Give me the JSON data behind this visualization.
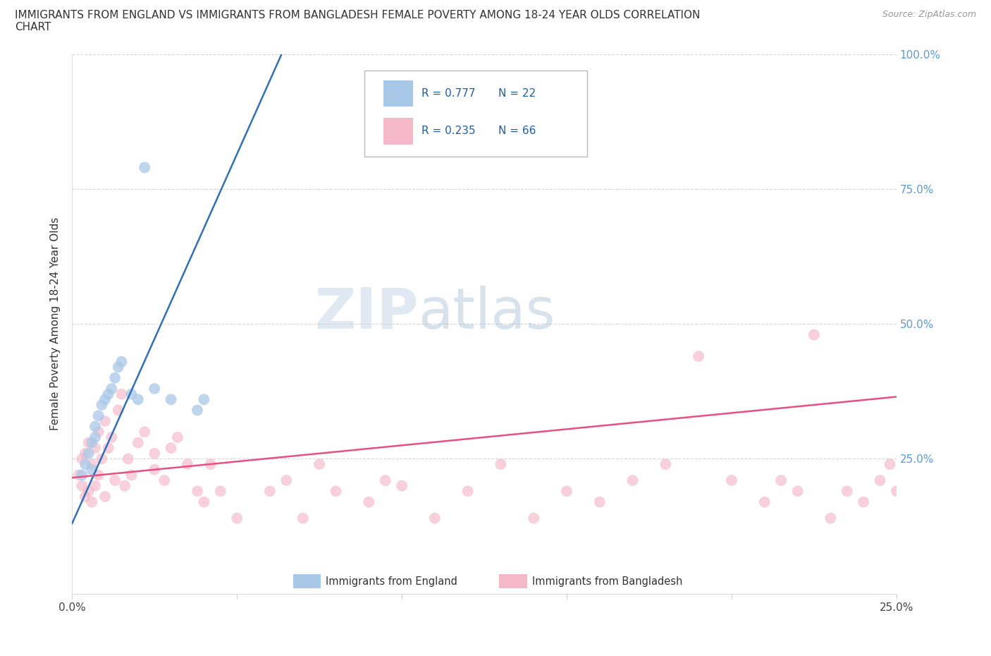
{
  "title_line1": "IMMIGRANTS FROM ENGLAND VS IMMIGRANTS FROM BANGLADESH FEMALE POVERTY AMONG 18-24 YEAR OLDS CORRELATION",
  "title_line2": "CHART",
  "source_text": "Source: ZipAtlas.com",
  "ylabel": "Female Poverty Among 18-24 Year Olds",
  "watermark_part1": "ZIP",
  "watermark_part2": "atlas",
  "england_R": 0.777,
  "england_N": 22,
  "bangladesh_R": 0.235,
  "bangladesh_N": 66,
  "england_color": "#a8c8e8",
  "bangladesh_color": "#f4b8c8",
  "england_line_color": "#3070b8",
  "bangladesh_line_color": "#e85080",
  "xlim": [
    0.0,
    0.25
  ],
  "ylim": [
    0.0,
    1.0
  ],
  "england_line_x0": 0.0,
  "england_line_y0": 0.13,
  "england_line_x1": 0.065,
  "england_line_y1": 1.02,
  "bangladesh_line_x0": 0.0,
  "bangladesh_line_y0": 0.215,
  "bangladesh_line_x1": 0.25,
  "bangladesh_line_y1": 0.365,
  "england_x": [
    0.003,
    0.004,
    0.005,
    0.006,
    0.006,
    0.007,
    0.007,
    0.008,
    0.009,
    0.01,
    0.011,
    0.012,
    0.013,
    0.014,
    0.015,
    0.018,
    0.02,
    0.025,
    0.03,
    0.038,
    0.04,
    0.022
  ],
  "england_y": [
    0.22,
    0.24,
    0.26,
    0.28,
    0.23,
    0.29,
    0.31,
    0.33,
    0.35,
    0.36,
    0.37,
    0.38,
    0.4,
    0.42,
    0.43,
    0.37,
    0.36,
    0.38,
    0.36,
    0.34,
    0.36,
    0.79
  ],
  "bangladesh_x": [
    0.002,
    0.003,
    0.003,
    0.004,
    0.004,
    0.005,
    0.005,
    0.006,
    0.006,
    0.007,
    0.007,
    0.008,
    0.008,
    0.009,
    0.01,
    0.01,
    0.011,
    0.012,
    0.013,
    0.014,
    0.015,
    0.016,
    0.017,
    0.018,
    0.02,
    0.022,
    0.025,
    0.025,
    0.028,
    0.03,
    0.032,
    0.035,
    0.038,
    0.04,
    0.042,
    0.045,
    0.05,
    0.06,
    0.065,
    0.07,
    0.075,
    0.08,
    0.09,
    0.095,
    0.1,
    0.11,
    0.12,
    0.13,
    0.14,
    0.15,
    0.16,
    0.17,
    0.18,
    0.19,
    0.2,
    0.21,
    0.215,
    0.22,
    0.225,
    0.23,
    0.235,
    0.24,
    0.245,
    0.248,
    0.25,
    0.252
  ],
  "bangladesh_y": [
    0.22,
    0.2,
    0.25,
    0.18,
    0.26,
    0.19,
    0.28,
    0.17,
    0.24,
    0.2,
    0.27,
    0.22,
    0.3,
    0.25,
    0.18,
    0.32,
    0.27,
    0.29,
    0.21,
    0.34,
    0.37,
    0.2,
    0.25,
    0.22,
    0.28,
    0.3,
    0.23,
    0.26,
    0.21,
    0.27,
    0.29,
    0.24,
    0.19,
    0.17,
    0.24,
    0.19,
    0.14,
    0.19,
    0.21,
    0.14,
    0.24,
    0.19,
    0.17,
    0.21,
    0.2,
    0.14,
    0.19,
    0.24,
    0.14,
    0.19,
    0.17,
    0.21,
    0.24,
    0.44,
    0.21,
    0.17,
    0.21,
    0.19,
    0.48,
    0.14,
    0.19,
    0.17,
    0.21,
    0.24,
    0.19,
    0.21
  ]
}
